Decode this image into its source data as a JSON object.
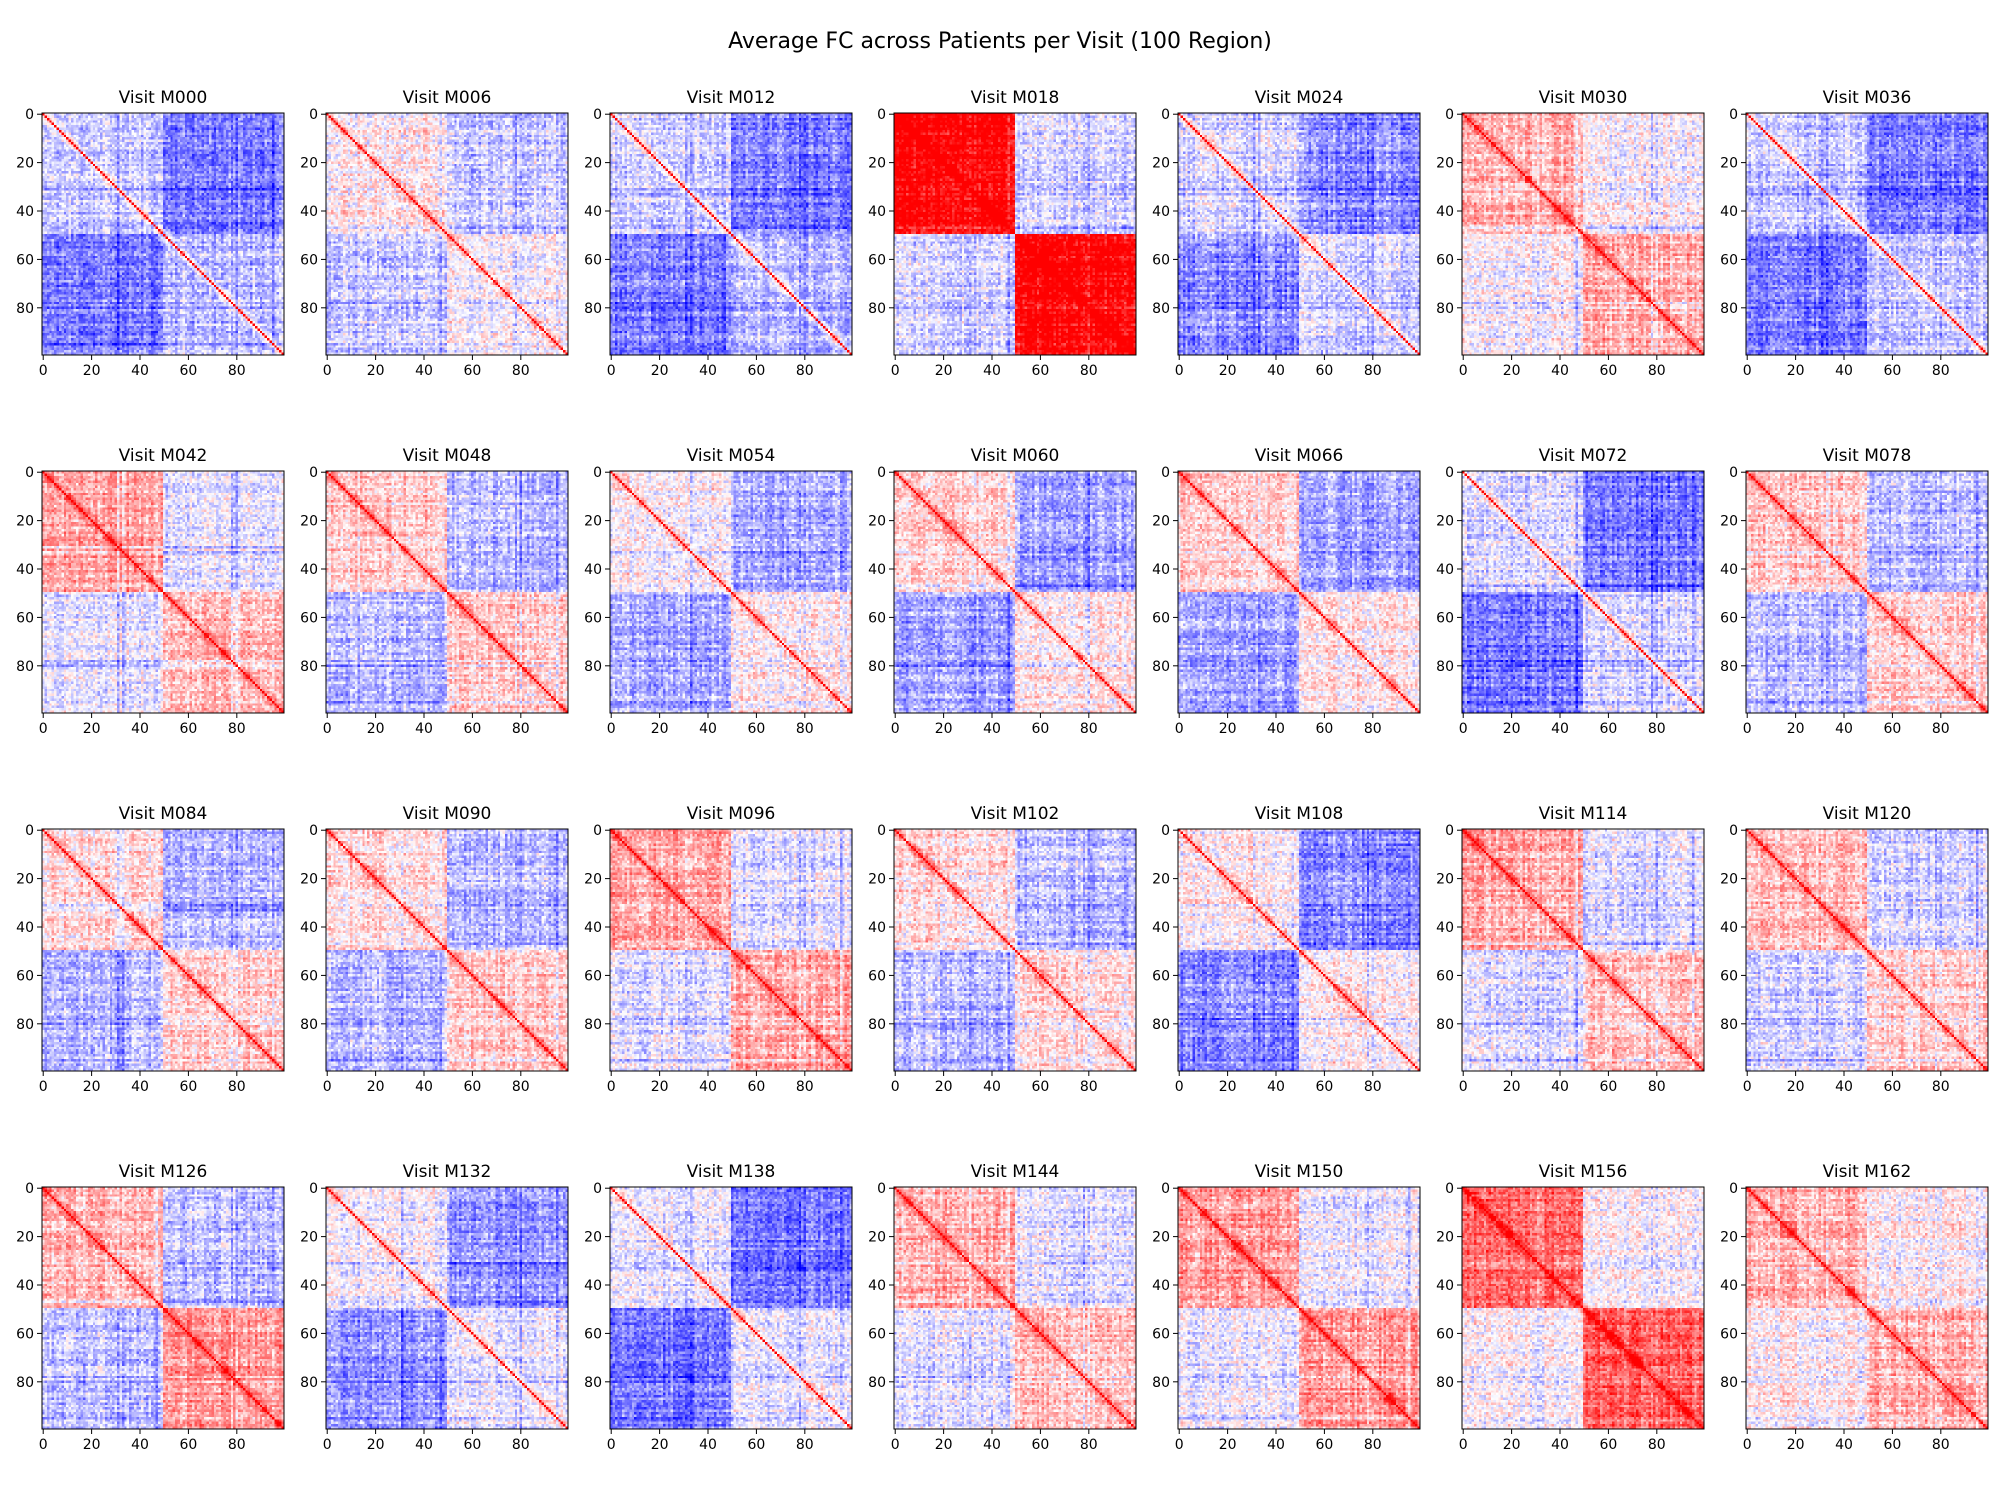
{
  "chart_data": {
    "type": "heatmap",
    "title": "Average FC across Patients per Visit (100 Region)",
    "matrix_size": 100,
    "rows": 4,
    "cols": 7,
    "xticks": [
      0,
      20,
      40,
      60,
      80
    ],
    "yticks": [
      0,
      20,
      40,
      60,
      80
    ],
    "xlim": [
      0,
      99
    ],
    "ylim": [
      99,
      0
    ],
    "colormap": "bwr",
    "vlim": [
      -1,
      1
    ],
    "colors": {
      "low": "#0000ff",
      "mid": "#ffffff",
      "high": "#ff0000"
    },
    "panels": [
      {
        "title": "Visit M000",
        "level": -0.3,
        "blockA": 0.1,
        "blockB": 0.05,
        "cross": -0.2,
        "seed": 11
      },
      {
        "title": "Visit M006",
        "level": -0.1,
        "blockA": 0.15,
        "blockB": 0.1,
        "cross": -0.1,
        "seed": 23
      },
      {
        "title": "Visit M012",
        "level": -0.3,
        "blockA": 0.1,
        "blockB": 0.05,
        "cross": -0.2,
        "seed": 37
      },
      {
        "title": "Visit M018",
        "level": 0.3,
        "blockA": 0.75,
        "blockB": 0.75,
        "cross": -0.45,
        "seed": 41
      },
      {
        "title": "Visit M024",
        "level": -0.25,
        "blockA": 0.1,
        "blockB": 0.1,
        "cross": -0.2,
        "seed": 53
      },
      {
        "title": "Visit M030",
        "level": 0.05,
        "blockA": 0.25,
        "blockB": 0.25,
        "cross": -0.05,
        "seed": 67
      },
      {
        "title": "Visit M036",
        "level": -0.3,
        "blockA": 0.1,
        "blockB": 0.1,
        "cross": -0.2,
        "seed": 71
      },
      {
        "title": "Visit M042",
        "level": 0.0,
        "blockA": 0.35,
        "blockB": 0.25,
        "cross": -0.1,
        "seed": 83
      },
      {
        "title": "Visit M048",
        "level": -0.1,
        "blockA": 0.3,
        "blockB": 0.3,
        "cross": -0.15,
        "seed": 97
      },
      {
        "title": "Visit M054",
        "level": -0.15,
        "blockA": 0.2,
        "blockB": 0.2,
        "cross": -0.15,
        "seed": 101
      },
      {
        "title": "Visit M060",
        "level": -0.15,
        "blockA": 0.3,
        "blockB": 0.25,
        "cross": -0.2,
        "seed": 113
      },
      {
        "title": "Visit M066",
        "level": -0.15,
        "blockA": 0.3,
        "blockB": 0.25,
        "cross": -0.2,
        "seed": 127
      },
      {
        "title": "Visit M072",
        "level": -0.25,
        "blockA": 0.15,
        "blockB": 0.1,
        "cross": -0.25,
        "seed": 131
      },
      {
        "title": "Visit M078",
        "level": -0.1,
        "blockA": 0.3,
        "blockB": 0.3,
        "cross": -0.15,
        "seed": 149
      },
      {
        "title": "Visit M084",
        "level": -0.1,
        "blockA": 0.25,
        "blockB": 0.3,
        "cross": -0.15,
        "seed": 151
      },
      {
        "title": "Visit M090",
        "level": -0.1,
        "blockA": 0.25,
        "blockB": 0.3,
        "cross": -0.15,
        "seed": 163
      },
      {
        "title": "Visit M096",
        "level": 0.0,
        "blockA": 0.35,
        "blockB": 0.35,
        "cross": -0.1,
        "seed": 179
      },
      {
        "title": "Visit M102",
        "level": -0.1,
        "blockA": 0.25,
        "blockB": 0.2,
        "cross": -0.15,
        "seed": 181
      },
      {
        "title": "Visit M108",
        "level": -0.2,
        "blockA": 0.25,
        "blockB": 0.25,
        "cross": -0.25,
        "seed": 193
      },
      {
        "title": "Visit M114",
        "level": 0.0,
        "blockA": 0.35,
        "blockB": 0.25,
        "cross": -0.1,
        "seed": 199
      },
      {
        "title": "Visit M120",
        "level": -0.05,
        "blockA": 0.3,
        "blockB": 0.25,
        "cross": -0.1,
        "seed": 211
      },
      {
        "title": "Visit M126",
        "level": -0.05,
        "blockA": 0.3,
        "blockB": 0.45,
        "cross": -0.2,
        "seed": 223
      },
      {
        "title": "Visit M132",
        "level": -0.2,
        "blockA": 0.15,
        "blockB": 0.15,
        "cross": -0.2,
        "seed": 227
      },
      {
        "title": "Visit M138",
        "level": -0.25,
        "blockA": 0.2,
        "blockB": 0.2,
        "cross": -0.25,
        "seed": 239
      },
      {
        "title": "Visit M144",
        "level": 0.0,
        "blockA": 0.3,
        "blockB": 0.25,
        "cross": -0.1,
        "seed": 241
      },
      {
        "title": "Visit M150",
        "level": 0.05,
        "blockA": 0.35,
        "blockB": 0.35,
        "cross": -0.1,
        "seed": 251
      },
      {
        "title": "Visit M156",
        "level": 0.05,
        "blockA": 0.55,
        "blockB": 0.55,
        "cross": -0.05,
        "seed": 263
      },
      {
        "title": "Visit M162",
        "level": 0.05,
        "blockA": 0.25,
        "blockB": 0.25,
        "cross": 0.0,
        "seed": 271
      }
    ]
  }
}
